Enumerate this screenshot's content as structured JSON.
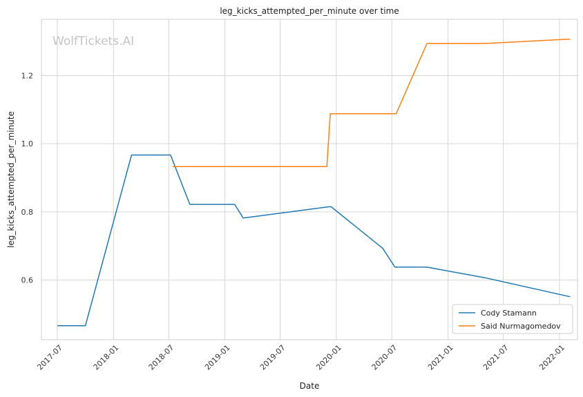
{
  "chart_data": {
    "type": "line",
    "title": "leg_kicks_attempted_per_minute over time",
    "xlabel": "Date",
    "ylabel": "leg_kicks_attempted_per_minute",
    "watermark": "WolfTickets.AI",
    "x_ticks": [
      "2017-07",
      "2018-01",
      "2018-07",
      "2019-01",
      "2019-07",
      "2020-01",
      "2020-07",
      "2021-01",
      "2021-07",
      "2022-01"
    ],
    "y_ticks": [
      "0.6",
      "0.8",
      "1.0",
      "1.2"
    ],
    "xlim": [
      "2017-05-10",
      "2022-03-01"
    ],
    "ylim": [
      0.425,
      1.365
    ],
    "grid": true,
    "legend_position": "bottom-right",
    "series": [
      {
        "name": "Cody Stamann",
        "color": "#1f77b4",
        "points": [
          [
            "2017-07-01",
            0.466
          ],
          [
            "2017-10-01",
            0.466
          ],
          [
            "2018-03-01",
            0.967
          ],
          [
            "2018-07-07",
            0.967
          ],
          [
            "2018-09-08",
            0.822
          ],
          [
            "2019-02-02",
            0.822
          ],
          [
            "2019-03-02",
            0.782
          ],
          [
            "2019-12-07",
            0.815
          ],
          [
            "2019-12-15",
            0.815
          ],
          [
            "2020-06-01",
            0.693
          ],
          [
            "2020-07-11",
            0.638
          ],
          [
            "2020-10-24",
            0.638
          ],
          [
            "2021-05-01",
            0.607
          ],
          [
            "2022-02-05",
            0.551
          ]
        ]
      },
      {
        "name": "Said Nurmagomedov",
        "color": "#ff7f0e",
        "points": [
          [
            "2018-07-14",
            0.933
          ],
          [
            "2019-12-01",
            0.933
          ],
          [
            "2019-12-12",
            1.088
          ],
          [
            "2020-07-15",
            1.088
          ],
          [
            "2020-10-24",
            1.294
          ],
          [
            "2021-05-01",
            1.294
          ],
          [
            "2022-02-05",
            1.307
          ]
        ]
      }
    ]
  }
}
